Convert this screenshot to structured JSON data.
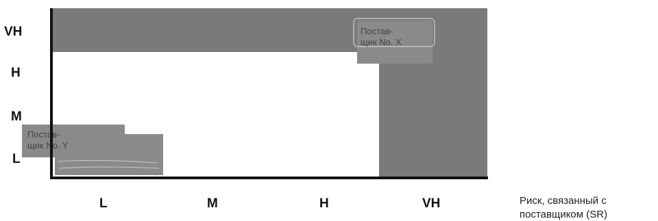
{
  "diagram": {
    "y_axis": {
      "title": "",
      "ticks": [
        "L",
        "M",
        "H",
        "VH"
      ]
    },
    "x_axis": {
      "title_lines": [
        "Риск, связанный с",
        "поставщиком (SR)"
      ],
      "ticks": [
        "L",
        "M",
        "H",
        "VH"
      ]
    },
    "regions": [
      {
        "name": "vh-row-band",
        "x_range": [
          "L",
          "VH"
        ],
        "y_range": [
          "VH",
          "VH"
        ],
        "color": "#7a7a7a"
      },
      {
        "name": "vh-column-band",
        "x_range": [
          "VH",
          "VH"
        ],
        "y_range": [
          "L",
          "VH"
        ],
        "color": "#7a7a7a"
      },
      {
        "name": "white-region",
        "x_range": [
          "L",
          "H"
        ],
        "y_range": [
          "L",
          "H"
        ],
        "color": "#ffffff"
      }
    ],
    "suppliers": [
      {
        "id": "supplier-x",
        "lines": [
          "Постав-",
          "щик No. X"
        ],
        "x_cell": "VH",
        "y_cell": "VH"
      },
      {
        "id": "supplier-y",
        "lines": [
          "Постав-",
          "щик No. Y"
        ],
        "x_cell": "L",
        "y_cell": "L"
      }
    ],
    "colors": {
      "band": "#7a7a7a",
      "supplier_box": "#8a8a8a",
      "axis": "#111111"
    }
  }
}
